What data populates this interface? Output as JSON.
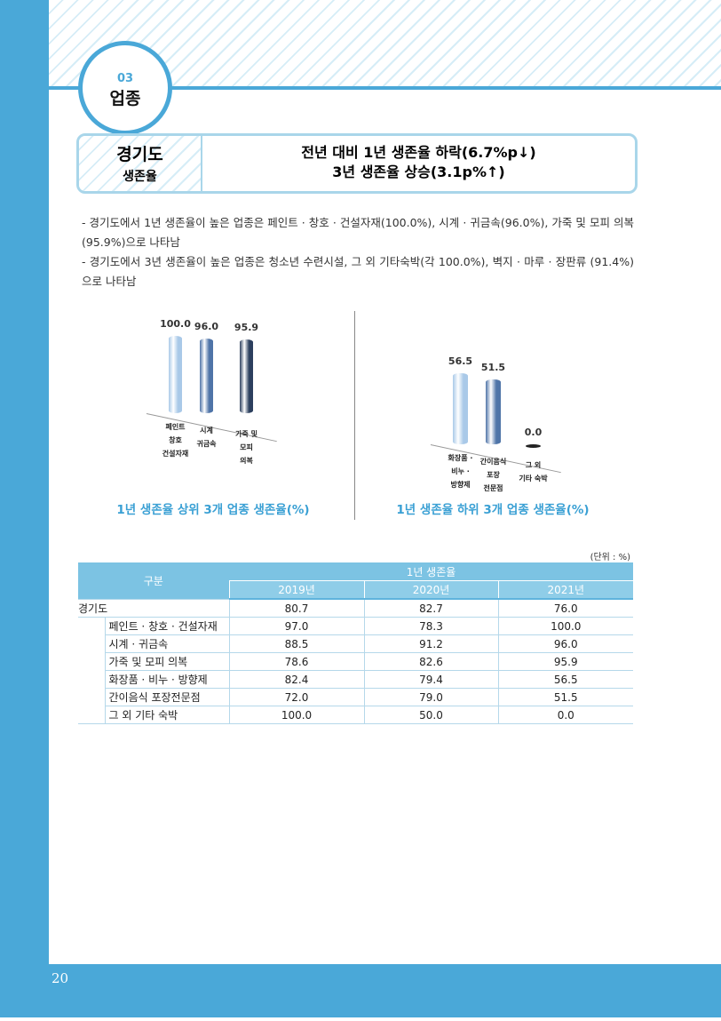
{
  "section": {
    "number": "03",
    "title": "업종"
  },
  "summary": {
    "label": [
      "경기도",
      "생존율"
    ],
    "headline": [
      "전년 대비 1년 생존율 하락(6.7%p↓)",
      "3년 생존율 상승(3.1p%↑)"
    ]
  },
  "bullets": [
    "- 경기도에서 1년 생존율이 높은 업종은 페인트 · 창호 · 건설자재(100.0%), 시계 · 귀금속(96.0%), 가죽 및 모피 의복(95.9%)으로 나타남",
    "- 경기도에서 3년 생존율이 높은 업종은 청소년 수련시설, 그 외 기타숙박(각 100.0%), 벽지 · 마루 · 장판류 (91.4%)으로 나타남"
  ],
  "chart_data": [
    {
      "type": "bar",
      "title": "1년 생존율 상위 3개 업종 생존율(%)",
      "categories": [
        "페인트\n창호\n건설자재",
        "시계\n귀금속",
        "가죽 및\n모피\n의복"
      ],
      "values": [
        100,
        96,
        95.9
      ],
      "value_labels": [
        "100.0",
        "96.0",
        "95.9"
      ],
      "colors": [
        "#a9c9e8",
        "#4f74a8",
        "#2c3f5e"
      ]
    },
    {
      "type": "bar",
      "title": "1년 생존율 하위 3개 업종 생존율(%)",
      "categories": [
        "화장품 ·\n비누 ·\n방향제",
        "간이음식\n포장\n전문점",
        "그 외\n기타 숙박"
      ],
      "values": [
        56.5,
        51.5,
        0
      ],
      "value_labels": [
        "56.5",
        "51.5",
        "0.0"
      ],
      "colors": [
        "#a9c9e8",
        "#4f74a8",
        "#2c3f5e"
      ]
    }
  ],
  "table": {
    "unit": "(단위 : %)",
    "group": "구분",
    "span": "1년 생존율",
    "years": [
      "2019년",
      "2020년",
      "2021년"
    ],
    "rows": [
      [
        "경기도",
        "80.7",
        "82.7",
        "76.0"
      ],
      [
        "페인트 · 창호 · 건설자재",
        "97.0",
        "78.3",
        "100.0"
      ],
      [
        "시계 · 귀금속",
        "88.5",
        "91.2",
        "96.0"
      ],
      [
        "가죽 및 모피 의복",
        "78.6",
        "82.6",
        "95.9"
      ],
      [
        "화장품 · 비누 · 방향제",
        "82.4",
        "79.4",
        "56.5"
      ],
      [
        "간이음식 포장전문점",
        "72.0",
        "79.0",
        "51.5"
      ],
      [
        "그 외 기타 숙박",
        "100.0",
        "50.0",
        "0.0"
      ]
    ]
  },
  "page_number": "20"
}
